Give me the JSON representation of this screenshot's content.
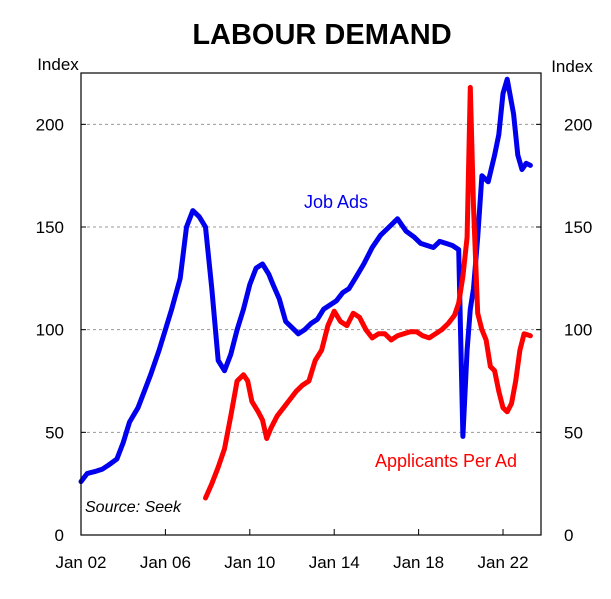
{
  "chart_data": {
    "type": "line",
    "title": "LABOUR DEMAND",
    "ylabel_left": "Index",
    "ylabel_right": "Index",
    "source": "Source: Seek",
    "x_range": [
      2002.0,
      2023.8
    ],
    "ylim": [
      0,
      225
    ],
    "y_ticks": [
      0,
      50,
      100,
      150,
      200
    ],
    "x_ticks": [
      {
        "label": "Jan 02",
        "value": 2002
      },
      {
        "label": "Jan 06",
        "value": 2006
      },
      {
        "label": "Jan 10",
        "value": 2010
      },
      {
        "label": "Jan 14",
        "value": 2014
      },
      {
        "label": "Jan 18",
        "value": 2018
      },
      {
        "label": "Jan 22",
        "value": 2022
      }
    ],
    "gridlines": "horizontal-dashed",
    "colors": {
      "job_ads": "#0000ee",
      "applicants": "#ff0000"
    },
    "series": [
      {
        "name": "Job Ads",
        "color": "#0000ee",
        "x": [
          2002.0,
          2002.3,
          2002.7,
          2003.0,
          2003.3,
          2003.7,
          2004.0,
          2004.3,
          2004.7,
          2005.0,
          2005.3,
          2005.7,
          2006.0,
          2006.3,
          2006.7,
          2007.0,
          2007.3,
          2007.6,
          2007.9,
          2008.2,
          2008.5,
          2008.8,
          2009.1,
          2009.4,
          2009.7,
          2010.0,
          2010.3,
          2010.6,
          2010.9,
          2011.1,
          2011.4,
          2011.7,
          2012.0,
          2012.3,
          2012.6,
          2012.9,
          2013.2,
          2013.5,
          2013.8,
          2014.1,
          2014.4,
          2014.7,
          2015.0,
          2015.4,
          2015.8,
          2016.2,
          2016.6,
          2017.0,
          2017.4,
          2017.8,
          2018.1,
          2018.4,
          2018.7,
          2019.0,
          2019.3,
          2019.6,
          2019.9,
          2020.1,
          2020.3,
          2020.45,
          2020.6,
          2020.8,
          2021.0,
          2021.3,
          2021.6,
          2021.8,
          2022.0,
          2022.2,
          2022.5,
          2022.7,
          2022.9,
          2023.1,
          2023.3
        ],
        "values": [
          26,
          30,
          31,
          32,
          34,
          37,
          45,
          55,
          62,
          70,
          78,
          90,
          100,
          110,
          125,
          150,
          158,
          155,
          150,
          120,
          85,
          80,
          88,
          100,
          110,
          122,
          130,
          132,
          127,
          122,
          115,
          104,
          101,
          98,
          100,
          103,
          105,
          110,
          112,
          114,
          118,
          120,
          125,
          132,
          140,
          146,
          150,
          154,
          148,
          145,
          142,
          141,
          140,
          143,
          142,
          141,
          139,
          48,
          90,
          110,
          120,
          145,
          175,
          172,
          185,
          195,
          215,
          222,
          205,
          185,
          178,
          181,
          180
        ]
      },
      {
        "name": "Applicants Per Ad",
        "color": "#ff0000",
        "x": [
          2007.9,
          2008.2,
          2008.5,
          2008.8,
          2009.1,
          2009.4,
          2009.7,
          2009.9,
          2010.1,
          2010.4,
          2010.6,
          2010.8,
          2011.0,
          2011.3,
          2011.6,
          2011.9,
          2012.2,
          2012.5,
          2012.8,
          2013.1,
          2013.4,
          2013.7,
          2014.0,
          2014.3,
          2014.6,
          2014.9,
          2015.2,
          2015.5,
          2015.8,
          2016.1,
          2016.4,
          2016.7,
          2017.0,
          2017.3,
          2017.6,
          2017.9,
          2018.2,
          2018.5,
          2018.8,
          2019.1,
          2019.4,
          2019.7,
          2019.9,
          2020.1,
          2020.3,
          2020.45,
          2020.6,
          2020.8,
          2021.0,
          2021.2,
          2021.4,
          2021.6,
          2021.8,
          2022.0,
          2022.2,
          2022.4,
          2022.6,
          2022.8,
          2023.0,
          2023.3
        ],
        "values": [
          18,
          25,
          33,
          42,
          58,
          75,
          78,
          75,
          65,
          60,
          56,
          47,
          52,
          58,
          62,
          66,
          70,
          73,
          75,
          85,
          90,
          102,
          109,
          104,
          102,
          108,
          106,
          100,
          96,
          98,
          98,
          95,
          97,
          98,
          99,
          99,
          97,
          96,
          98,
          100,
          103,
          107,
          113,
          126,
          145,
          218,
          160,
          108,
          100,
          95,
          82,
          80,
          70,
          62,
          60,
          64,
          75,
          90,
          98,
          97
        ]
      }
    ],
    "series_labels": [
      {
        "text": "Job Ads",
        "color": "#0000ee"
      },
      {
        "text": "Applicants Per Ad",
        "color": "#ff0000"
      }
    ]
  }
}
